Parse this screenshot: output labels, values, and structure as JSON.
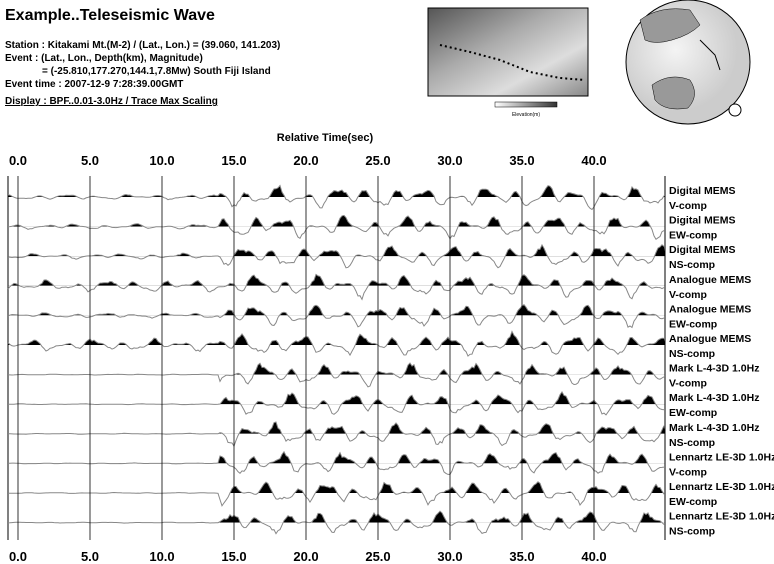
{
  "header": {
    "title": "Example..Teleseismic Wave",
    "lines": [
      "Station : Kitakami Mt.(M-2) / (Lat., Lon.) = (39.060, 141.203)",
      "Event : (Lat., Lon., Depth(km), Magnitude)",
      "= (-25.810,177.270,144.1,7.8Mw) South Fiji Island",
      "Event time : 2007-12-9 7:28:39.00GMT"
    ],
    "display": "Display : BPF..0.01-3.0Hz  / Trace Max Scaling"
  },
  "map": {
    "legend": "Elevation(m)"
  },
  "axis": {
    "title": "Relative Time(sec)",
    "ticks": [
      {
        "value": 0,
        "label": "0.0"
      },
      {
        "value": 5,
        "label": "5.0"
      },
      {
        "value": 10,
        "label": "10.0"
      },
      {
        "value": 15,
        "label": "15.0"
      },
      {
        "value": 20,
        "label": "20.0"
      },
      {
        "value": 25,
        "label": "25.0"
      },
      {
        "value": 30,
        "label": "30.0"
      },
      {
        "value": 35,
        "label": "35.0"
      },
      {
        "value": 40,
        "label": "40.0"
      }
    ]
  },
  "traces": [
    [
      "Digital MEMS",
      "V-comp"
    ],
    [
      "Digital MEMS",
      "EW-comp"
    ],
    [
      "Digital MEMS",
      "NS-comp"
    ],
    [
      "Analogue MEMS",
      "V-comp"
    ],
    [
      "Analogue MEMS",
      "EW-comp"
    ],
    [
      "Analogue MEMS",
      "NS-comp"
    ],
    [
      "Mark L-4-3D 1.0Hz",
      "V-comp"
    ],
    [
      "Mark L-4-3D 1.0Hz",
      "EW-comp"
    ],
    [
      "Mark L-4-3D 1.0Hz",
      "NS-comp"
    ],
    [
      "Lennartz LE-3D 1.0Hz",
      "V-comp"
    ],
    [
      "Lennartz LE-3D 1.0Hz",
      "EW-comp"
    ],
    [
      "Lennartz LE-3D 1.0Hz",
      "NS-comp"
    ]
  ]
}
